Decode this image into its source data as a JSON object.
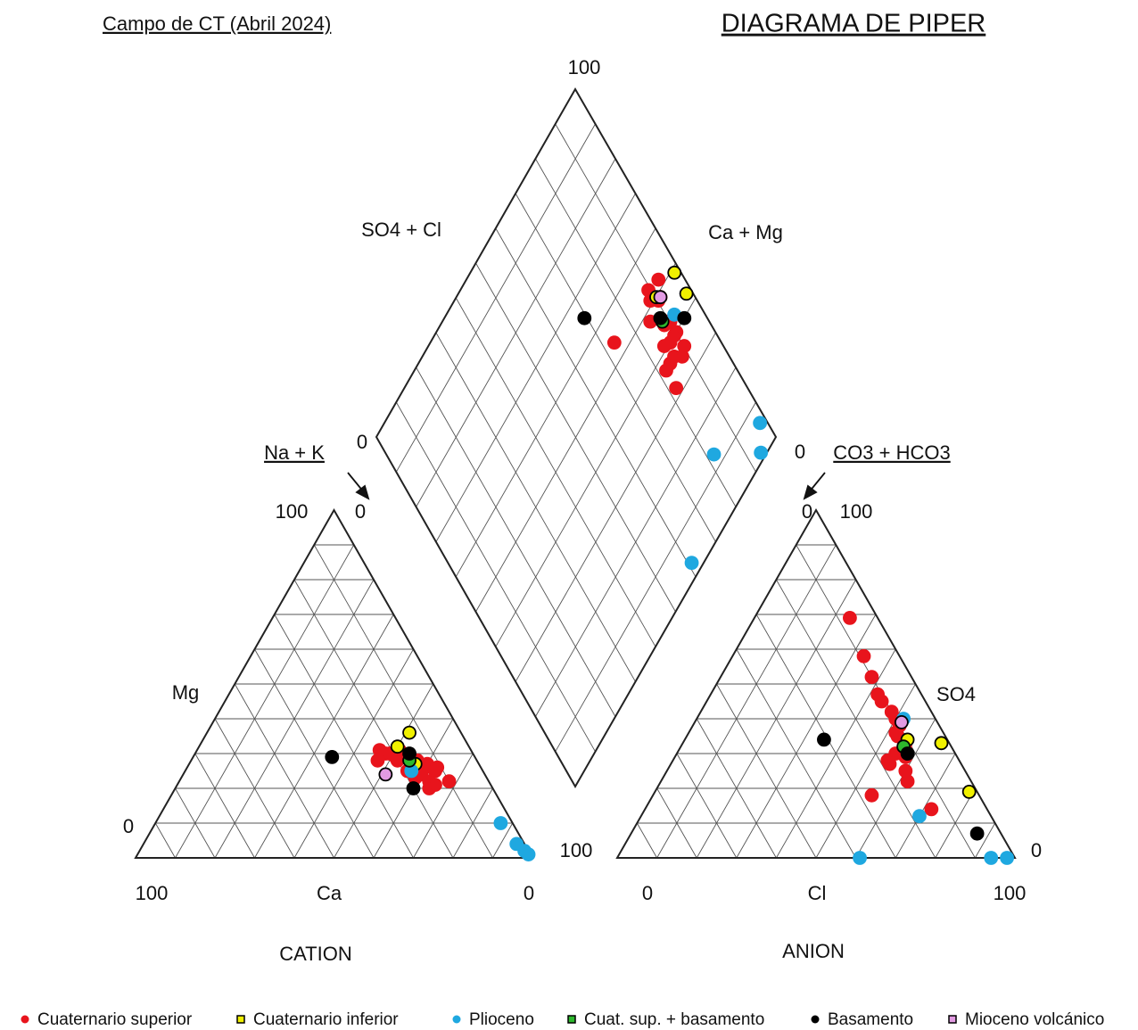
{
  "chart_data": {
    "type": "piper",
    "title": "DIAGRAMA DE PIPER",
    "subtitle": "Campo de CT (Abril 2024)",
    "axis_labels": {
      "so4_cl": "SO4 + Cl",
      "ca_mg": "Ca + Mg",
      "na_k": "Na + K",
      "co3_hco3": "CO3 + HCO3",
      "mg": "Mg",
      "ca": "Ca",
      "cation": "CATION",
      "cl": "Cl",
      "so4": "SO4",
      "anion": "ANION"
    },
    "corner_ticks": [
      100,
      0,
      0,
      100,
      0,
      0,
      100,
      0,
      100,
      0,
      100,
      0,
      100,
      0
    ],
    "series": [
      {
        "name": "Cuaternario superior",
        "color": "#e8141c",
        "edgecolor": "#e8141c",
        "ca": [
          22,
          20,
          18,
          25,
          17,
          15,
          14,
          19,
          16,
          21,
          13,
          12,
          18,
          15,
          23,
          11,
          16,
          14,
          20,
          10
        ],
        "mg": [
          30,
          29,
          31,
          28,
          27,
          28,
          26,
          25,
          24,
          30,
          27,
          25,
          23,
          22,
          31,
          26,
          20,
          21,
          28,
          22
        ],
        "so4": [
          69,
          58,
          52,
          47,
          45,
          40,
          38,
          35,
          33,
          31,
          29,
          27,
          25,
          22,
          18,
          14,
          42,
          36,
          30,
          28
        ],
        "cl": [
          24,
          33,
          38,
          42,
          44,
          50,
          52,
          53,
          56,
          57,
          58,
          55,
          60,
          62,
          55,
          72,
          48,
          52,
          55,
          54
        ]
      },
      {
        "name": "Cuaternario inferior",
        "color": "#f0f000",
        "edgecolor": "#000000",
        "ca": [
          18,
          13,
          16
        ],
        "mg": [
          32,
          36,
          27
        ],
        "so4": [
          34,
          33,
          19
        ],
        "cl": [
          56,
          65,
          79
        ]
      },
      {
        "name": "Plioceno",
        "color": "#1fa8e0",
        "edgecolor": "#1fa8e0",
        "ca": [
          18,
          3,
          1,
          0.5,
          2
        ],
        "mg": [
          25,
          10,
          2,
          1,
          4
        ],
        "so4": [
          40,
          12,
          0,
          0,
          0
        ],
        "cl": [
          52,
          70,
          61,
          94,
          98
        ]
      },
      {
        "name": "Cuat. sup. + basamento",
        "color": "#2db82d",
        "edgecolor": "#000000",
        "ca": [
          17
        ],
        "mg": [
          28
        ],
        "so4": [
          32
        ],
        "cl": [
          56
        ]
      },
      {
        "name": "Basamento",
        "color": "#000000",
        "edgecolor": "#000000",
        "ca": [
          36,
          20,
          16
        ],
        "mg": [
          29,
          20,
          30
        ],
        "so4": [
          34,
          7,
          30
        ],
        "cl": [
          35,
          87,
          58
        ]
      },
      {
        "name": "Mioceno volcánico",
        "color": "#e39be3",
        "edgecolor": "#000000",
        "ca": [
          25
        ],
        "mg": [
          24
        ],
        "so4": [
          39
        ],
        "cl": [
          52
        ]
      }
    ]
  }
}
